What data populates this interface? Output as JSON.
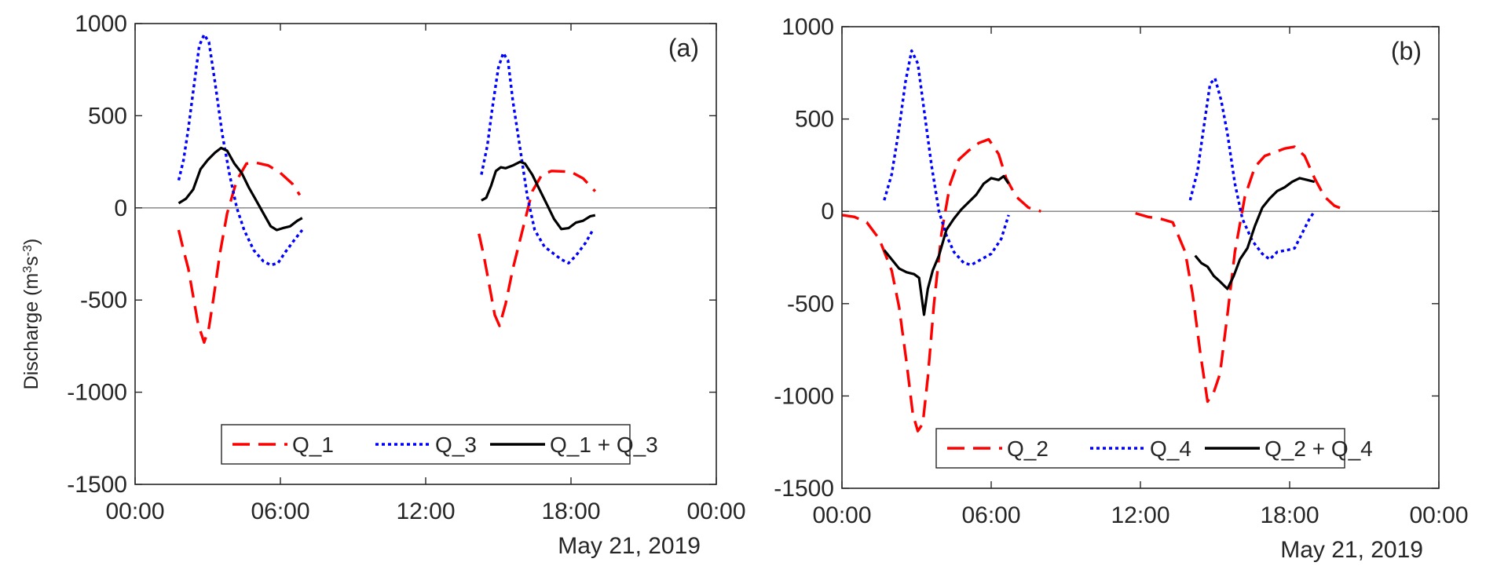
{
  "figure": {
    "ylabel_main": "Discharge (m",
    "ylabel_sup1": "3",
    "ylabel_mid": "s",
    "ylabel_sup2": "-3",
    "ylabel_end": ")"
  },
  "chart_data": [
    {
      "type": "line",
      "panel_label": "(a)",
      "xlabel": "May 21, 2019",
      "ylabel": "Discharge (m^3 s^-3)",
      "x_unit": "hours after 00:00, May 21, 2019",
      "xlim": [
        0,
        24
      ],
      "ylim": [
        -1500,
        1000
      ],
      "x_ticks": [
        "00:00",
        "06:00",
        "12:00",
        "18:00",
        "00:00"
      ],
      "y_ticks": [
        "-1500",
        "-1000",
        "-500",
        "0",
        "500",
        "1000"
      ],
      "legend_position": "bottom-center",
      "grid": false,
      "colors": {
        "red": "#ff0000",
        "blue": "#0000ff",
        "black": "#000000"
      },
      "series": [
        {
          "name": "Q_1",
          "color": "#ff0000",
          "style": "dashed",
          "segments": [
            [
              [
                1.8,
                -120
              ],
              [
                2.0,
                -230
              ],
              [
                2.2,
                -330
              ],
              [
                2.4,
                -480
              ],
              [
                2.6,
                -630
              ],
              [
                2.85,
                -730
              ],
              [
                3.05,
                -650
              ],
              [
                3.25,
                -480
              ],
              [
                3.5,
                -250
              ],
              [
                3.8,
                -30
              ],
              [
                4.2,
                150
              ],
              [
                4.6,
                240
              ],
              [
                5.0,
                245
              ],
              [
                5.5,
                230
              ],
              [
                6.0,
                190
              ],
              [
                6.5,
                130
              ],
              [
                6.8,
                70
              ]
            ],
            [
              [
                14.2,
                -140
              ],
              [
                14.4,
                -260
              ],
              [
                14.6,
                -400
              ],
              [
                14.85,
                -580
              ],
              [
                15.05,
                -640
              ],
              [
                15.3,
                -520
              ],
              [
                15.6,
                -330
              ],
              [
                16.0,
                -120
              ],
              [
                16.4,
                90
              ],
              [
                16.8,
                180
              ],
              [
                17.2,
                200
              ],
              [
                17.6,
                198
              ],
              [
                18.0,
                195
              ],
              [
                18.5,
                160
              ],
              [
                19.0,
                90
              ]
            ]
          ]
        },
        {
          "name": "Q_3",
          "color": "#0000ff",
          "style": "dotted",
          "segments": [
            [
              [
                1.8,
                150
              ],
              [
                2.0,
                260
              ],
              [
                2.2,
                430
              ],
              [
                2.45,
                680
              ],
              [
                2.65,
                880
              ],
              [
                2.85,
                940
              ],
              [
                3.05,
                900
              ],
              [
                3.3,
                680
              ],
              [
                3.6,
                400
              ],
              [
                3.9,
                180
              ],
              [
                4.2,
                0
              ],
              [
                4.5,
                -120
              ],
              [
                4.9,
                -230
              ],
              [
                5.3,
                -290
              ],
              [
                5.6,
                -310
              ],
              [
                5.9,
                -300
              ],
              [
                6.2,
                -240
              ],
              [
                6.6,
                -170
              ],
              [
                6.9,
                -120
              ]
            ],
            [
              [
                14.3,
                180
              ],
              [
                14.55,
                340
              ],
              [
                14.75,
                540
              ],
              [
                15.0,
                760
              ],
              [
                15.2,
                840
              ],
              [
                15.4,
                800
              ],
              [
                15.6,
                580
              ],
              [
                15.9,
                320
              ],
              [
                16.2,
                60
              ],
              [
                16.5,
                -120
              ],
              [
                16.9,
                -210
              ],
              [
                17.3,
                -250
              ],
              [
                17.6,
                -280
              ],
              [
                17.9,
                -300
              ],
              [
                18.2,
                -260
              ],
              [
                18.6,
                -190
              ],
              [
                18.9,
                -120
              ]
            ]
          ]
        },
        {
          "name": "Q_1 + Q_3",
          "color": "#000000",
          "style": "solid",
          "segments": [
            [
              [
                1.8,
                25
              ],
              [
                2.1,
                50
              ],
              [
                2.4,
                100
              ],
              [
                2.7,
                210
              ],
              [
                3.0,
                260
              ],
              [
                3.3,
                300
              ],
              [
                3.55,
                325
              ],
              [
                3.8,
                310
              ],
              [
                4.1,
                240
              ],
              [
                4.4,
                190
              ],
              [
                4.7,
                110
              ],
              [
                5.0,
                40
              ],
              [
                5.3,
                -30
              ],
              [
                5.6,
                -100
              ],
              [
                5.85,
                -120
              ],
              [
                6.1,
                -110
              ],
              [
                6.4,
                -100
              ],
              [
                6.7,
                -70
              ],
              [
                6.9,
                -55
              ]
            ],
            [
              [
                14.3,
                40
              ],
              [
                14.5,
                55
              ],
              [
                14.7,
                120
              ],
              [
                14.9,
                200
              ],
              [
                15.1,
                220
              ],
              [
                15.3,
                215
              ],
              [
                15.6,
                230
              ],
              [
                15.9,
                250
              ],
              [
                16.1,
                240
              ],
              [
                16.4,
                180
              ],
              [
                16.7,
                100
              ],
              [
                17.0,
                20
              ],
              [
                17.3,
                -60
              ],
              [
                17.6,
                -115
              ],
              [
                17.9,
                -110
              ],
              [
                18.2,
                -80
              ],
              [
                18.5,
                -70
              ],
              [
                18.8,
                -45
              ],
              [
                19.0,
                -40
              ]
            ]
          ]
        }
      ]
    },
    {
      "type": "line",
      "panel_label": "(b)",
      "xlabel": "May 21, 2019",
      "ylabel": "",
      "x_unit": "hours after 00:00, May 21, 2019",
      "xlim": [
        0,
        24
      ],
      "ylim": [
        -1500,
        1000
      ],
      "x_ticks": [
        "00:00",
        "06:00",
        "12:00",
        "18:00",
        "00:00"
      ],
      "y_ticks": [
        "-1500",
        "-1000",
        "-500",
        "0",
        "500",
        "1000"
      ],
      "legend_position": "bottom-center",
      "grid": false,
      "colors": {
        "red": "#ff0000",
        "blue": "#0000ff",
        "black": "#000000"
      },
      "series": [
        {
          "name": "Q_2",
          "color": "#ff0000",
          "style": "dashed",
          "segments": [
            [
              [
                0.0,
                -20
              ],
              [
                0.5,
                -30
              ],
              [
                1.0,
                -60
              ],
              [
                1.5,
                -150
              ],
              [
                2.0,
                -320
              ],
              [
                2.3,
                -520
              ],
              [
                2.6,
                -820
              ],
              [
                2.85,
                -1100
              ],
              [
                3.05,
                -1190
              ],
              [
                3.25,
                -1150
              ],
              [
                3.45,
                -900
              ],
              [
                3.7,
                -500
              ],
              [
                4.0,
                -120
              ],
              [
                4.35,
                150
              ],
              [
                4.7,
                280
              ],
              [
                5.1,
                330
              ],
              [
                5.5,
                370
              ],
              [
                5.9,
                390
              ],
              [
                6.3,
                310
              ],
              [
                6.6,
                180
              ],
              [
                7.0,
                80
              ],
              [
                7.5,
                20
              ],
              [
                8.0,
                0
              ]
            ],
            [
              [
                11.8,
                -10
              ],
              [
                12.3,
                -30
              ],
              [
                12.8,
                -40
              ],
              [
                13.3,
                -60
              ],
              [
                13.8,
                -220
              ],
              [
                14.1,
                -450
              ],
              [
                14.4,
                -760
              ],
              [
                14.7,
                -1030
              ],
              [
                14.95,
                -980
              ],
              [
                15.2,
                -880
              ],
              [
                15.5,
                -560
              ],
              [
                15.8,
                -220
              ],
              [
                16.2,
                80
              ],
              [
                16.6,
                240
              ],
              [
                17.0,
                300
              ],
              [
                17.4,
                320
              ],
              [
                17.8,
                340
              ],
              [
                18.2,
                350
              ],
              [
                18.6,
                300
              ],
              [
                19.0,
                180
              ],
              [
                19.4,
                80
              ],
              [
                19.8,
                30
              ],
              [
                20.1,
                15
              ]
            ]
          ]
        },
        {
          "name": "Q_4",
          "color": "#0000ff",
          "style": "dotted",
          "segments": [
            [
              [
                1.7,
                60
              ],
              [
                2.0,
                200
              ],
              [
                2.3,
                450
              ],
              [
                2.55,
                700
              ],
              [
                2.8,
                870
              ],
              [
                3.05,
                800
              ],
              [
                3.3,
                550
              ],
              [
                3.6,
                250
              ],
              [
                3.9,
                0
              ],
              [
                4.2,
                -130
              ],
              [
                4.5,
                -220
              ],
              [
                4.9,
                -280
              ],
              [
                5.2,
                -290
              ],
              [
                5.6,
                -260
              ],
              [
                6.0,
                -230
              ],
              [
                6.4,
                -150
              ],
              [
                6.7,
                -20
              ]
            ],
            [
              [
                14.0,
                60
              ],
              [
                14.3,
                220
              ],
              [
                14.55,
                460
              ],
              [
                14.8,
                690
              ],
              [
                15.0,
                720
              ],
              [
                15.25,
                600
              ],
              [
                15.5,
                420
              ],
              [
                15.8,
                150
              ],
              [
                16.1,
                -40
              ],
              [
                16.5,
                -160
              ],
              [
                16.9,
                -230
              ],
              [
                17.2,
                -260
              ],
              [
                17.5,
                -220
              ],
              [
                17.9,
                -210
              ],
              [
                18.2,
                -200
              ],
              [
                18.5,
                -120
              ],
              [
                18.8,
                -40
              ],
              [
                19.0,
                0
              ]
            ]
          ]
        },
        {
          "name": "Q_2 + Q_4",
          "color": "#000000",
          "style": "solid",
          "segments": [
            [
              [
                1.7,
                -210
              ],
              [
                2.0,
                -260
              ],
              [
                2.3,
                -310
              ],
              [
                2.6,
                -330
              ],
              [
                2.9,
                -340
              ],
              [
                3.1,
                -360
              ],
              [
                3.3,
                -560
              ],
              [
                3.45,
                -420
              ],
              [
                3.65,
                -320
              ],
              [
                3.9,
                -240
              ],
              [
                4.2,
                -100
              ],
              [
                4.5,
                -40
              ],
              [
                4.8,
                10
              ],
              [
                5.1,
                50
              ],
              [
                5.4,
                90
              ],
              [
                5.7,
                150
              ],
              [
                6.0,
                180
              ],
              [
                6.3,
                170
              ],
              [
                6.5,
                190
              ],
              [
                6.7,
                150
              ]
            ],
            [
              [
                14.2,
                -240
              ],
              [
                14.45,
                -280
              ],
              [
                14.7,
                -300
              ],
              [
                14.95,
                -350
              ],
              [
                15.2,
                -380
              ],
              [
                15.5,
                -420
              ],
              [
                15.75,
                -350
              ],
              [
                16.0,
                -260
              ],
              [
                16.3,
                -200
              ],
              [
                16.6,
                -80
              ],
              [
                16.9,
                20
              ],
              [
                17.2,
                70
              ],
              [
                17.5,
                110
              ],
              [
                17.8,
                130
              ],
              [
                18.1,
                160
              ],
              [
                18.4,
                180
              ],
              [
                18.7,
                170
              ],
              [
                19.0,
                160
              ]
            ]
          ]
        }
      ]
    }
  ]
}
